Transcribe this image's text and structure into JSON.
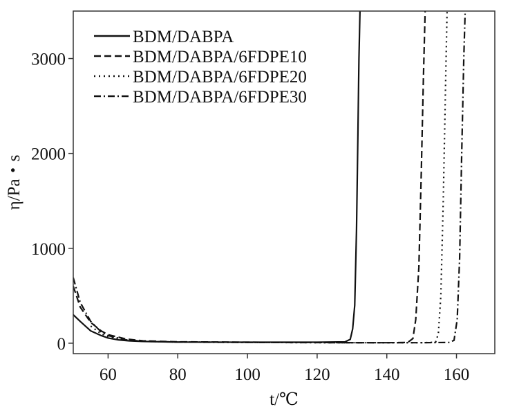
{
  "chart_data": {
    "type": "line",
    "title": "",
    "xlabel": "t/℃",
    "ylabel": "η/Pa・s",
    "xlim": [
      50,
      171
    ],
    "ylim": [
      -110,
      3500
    ],
    "xticks": [
      60,
      80,
      100,
      120,
      140,
      160
    ],
    "yticks": [
      0,
      1000,
      2000,
      3000
    ],
    "grid": false,
    "legend_position": "top-left",
    "series": [
      {
        "name": "BDM/DABPA",
        "dash": "solid",
        "points": [
          [
            50,
            300
          ],
          [
            52,
            230
          ],
          [
            55,
            130
          ],
          [
            58,
            80
          ],
          [
            60,
            55
          ],
          [
            63,
            35
          ],
          [
            66,
            25
          ],
          [
            70,
            18
          ],
          [
            80,
            12
          ],
          [
            100,
            10
          ],
          [
            120,
            10
          ],
          [
            128,
            14
          ],
          [
            129.5,
            40
          ],
          [
            130.2,
            150
          ],
          [
            130.8,
            400
          ],
          [
            131.3,
            1200
          ],
          [
            131.7,
            2200
          ],
          [
            132.0,
            3000
          ],
          [
            132.3,
            3500
          ]
        ]
      },
      {
        "name": "BDM/DABPA/6FDPE10",
        "dash": "dashed",
        "points": [
          [
            50,
            600
          ],
          [
            52,
            380
          ],
          [
            55,
            220
          ],
          [
            58,
            130
          ],
          [
            60,
            90
          ],
          [
            65,
            45
          ],
          [
            70,
            25
          ],
          [
            80,
            15
          ],
          [
            100,
            10
          ],
          [
            120,
            8
          ],
          [
            130,
            5
          ],
          [
            140,
            5
          ],
          [
            146,
            8
          ],
          [
            147.5,
            50
          ],
          [
            148.3,
            250
          ],
          [
            149.2,
            800
          ],
          [
            149.9,
            1800
          ],
          [
            150.5,
            2800
          ],
          [
            151.0,
            3500
          ]
        ]
      },
      {
        "name": "BDM/DABPA/6FDPE20",
        "dash": "dotted",
        "points": [
          [
            55,
            180
          ],
          [
            58,
            100
          ],
          [
            60,
            70
          ],
          [
            65,
            35
          ],
          [
            70,
            20
          ],
          [
            80,
            12
          ],
          [
            100,
            8
          ],
          [
            120,
            6
          ],
          [
            140,
            5
          ],
          [
            150,
            5
          ],
          [
            154,
            10
          ],
          [
            154.8,
            100
          ],
          [
            155.5,
            500
          ],
          [
            156.2,
            1500
          ],
          [
            156.8,
            2600
          ],
          [
            157.3,
            3500
          ]
        ]
      },
      {
        "name": "BDM/DABPA/6FDPE30",
        "dash": "dash-dot",
        "points": [
          [
            50,
            690
          ],
          [
            52,
            430
          ],
          [
            55,
            230
          ],
          [
            58,
            120
          ],
          [
            60,
            80
          ],
          [
            65,
            35
          ],
          [
            70,
            20
          ],
          [
            80,
            12
          ],
          [
            100,
            8
          ],
          [
            130,
            5
          ],
          [
            140,
            5
          ],
          [
            150,
            5
          ],
          [
            158,
            8
          ],
          [
            159.3,
            30
          ],
          [
            160.2,
            250
          ],
          [
            160.9,
            900
          ],
          [
            161.5,
            2000
          ],
          [
            162.1,
            3000
          ],
          [
            162.5,
            3500
          ]
        ]
      }
    ]
  }
}
